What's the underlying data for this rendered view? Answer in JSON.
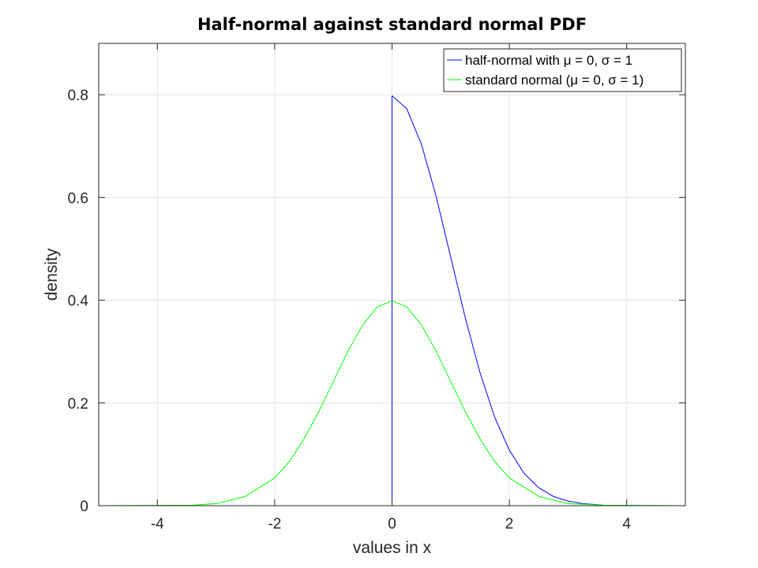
{
  "chart_data": {
    "type": "line",
    "title": "Half-normal against standard normal PDF",
    "xlabel": "values in x",
    "ylabel": "density",
    "xlim": [
      -5,
      5
    ],
    "ylim": [
      0,
      0.9
    ],
    "xticks": [
      -4,
      -2,
      0,
      2,
      4
    ],
    "xtick_labels": [
      "-4",
      "-2",
      "0",
      "2",
      "4"
    ],
    "yticks": [
      0,
      0.2,
      0.4,
      0.6,
      0.8
    ],
    "ytick_labels": [
      "0",
      "0.2",
      "0.4",
      "0.6",
      "0.8"
    ],
    "grid": true,
    "legend_position": "top-right",
    "series": [
      {
        "name": "half-normal with μ = 0, σ = 1",
        "color": "#0000ff",
        "x": [
          -5,
          -3.4,
          -1,
          0,
          0,
          0.25,
          0.5,
          0.75,
          1,
          1.25,
          1.5,
          1.75,
          2,
          2.25,
          2.5,
          2.75,
          3,
          3.25,
          3.5,
          3.6
        ],
        "y": [
          0,
          0,
          0,
          0,
          0.798,
          0.773,
          0.704,
          0.603,
          0.484,
          0.365,
          0.259,
          0.172,
          0.108,
          0.063,
          0.035,
          0.018,
          0.009,
          0.004,
          0.002,
          0.001
        ]
      },
      {
        "name": "standard normal (μ = 0, σ = 1)",
        "color": "#00ff00",
        "x": [
          -5,
          -3.4,
          -3,
          -2.5,
          -2,
          -1.75,
          -1.5,
          -1.25,
          -1,
          -0.75,
          -0.5,
          -0.25,
          0,
          0.25,
          0.5,
          0.75,
          1,
          1.25,
          1.5,
          1.75,
          2,
          2.5,
          3,
          3.6,
          5
        ],
        "y": [
          0,
          0.001,
          0.004,
          0.018,
          0.054,
          0.086,
          0.13,
          0.183,
          0.242,
          0.301,
          0.352,
          0.387,
          0.399,
          0.387,
          0.352,
          0.301,
          0.242,
          0.183,
          0.13,
          0.086,
          0.054,
          0.018,
          0.004,
          0.001,
          0
        ]
      }
    ]
  }
}
